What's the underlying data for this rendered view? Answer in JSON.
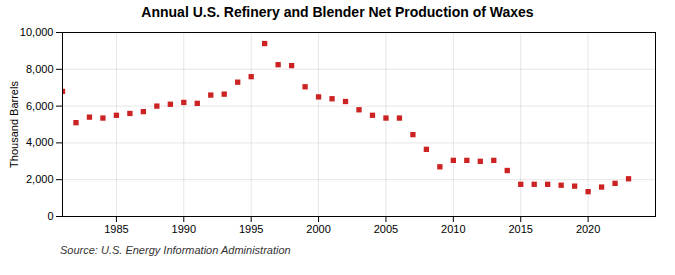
{
  "chart_data": {
    "type": "scatter",
    "title": "Annual U.S. Refinery and Blender Net Production of Waxes",
    "ylabel": "Thousand Barrels",
    "annotations": [
      "Source: U.S. Energy Information Administration"
    ],
    "color": "#cc2222",
    "marker": "square",
    "grid": true,
    "xlim": [
      1981,
      2025
    ],
    "ylim": [
      0,
      10000
    ],
    "xticks": [
      1985,
      1990,
      1995,
      2000,
      2005,
      2010,
      2015,
      2020
    ],
    "yticks": [
      0,
      {
        "value": 2000,
        "label": "2,000"
      },
      {
        "value": 4000,
        "label": "4,000"
      },
      {
        "value": 6000,
        "label": "6,000"
      },
      {
        "value": 8000,
        "label": "8,000"
      },
      {
        "value": 10000,
        "label": "10,000"
      }
    ],
    "x": [
      1981,
      1982,
      1983,
      1984,
      1985,
      1986,
      1987,
      1988,
      1989,
      1990,
      1991,
      1992,
      1993,
      1994,
      1995,
      1996,
      1997,
      1998,
      1999,
      2000,
      2001,
      2002,
      2003,
      2004,
      2005,
      2006,
      2007,
      2008,
      2009,
      2010,
      2011,
      2012,
      2013,
      2014,
      2015,
      2016,
      2017,
      2018,
      2019,
      2020,
      2021,
      2022,
      2023
    ],
    "values": [
      6800,
      5100,
      5400,
      5350,
      5500,
      5600,
      5700,
      6000,
      6100,
      6200,
      6150,
      6600,
      6650,
      7300,
      7600,
      9400,
      8250,
      8200,
      7050,
      6500,
      6400,
      6250,
      5800,
      5500,
      5350,
      5350,
      4450,
      3650,
      2700,
      3050,
      3050,
      3000,
      3050,
      2500,
      1750,
      1750,
      1750,
      1700,
      1650,
      1350,
      1600,
      1800,
      2050
    ]
  }
}
